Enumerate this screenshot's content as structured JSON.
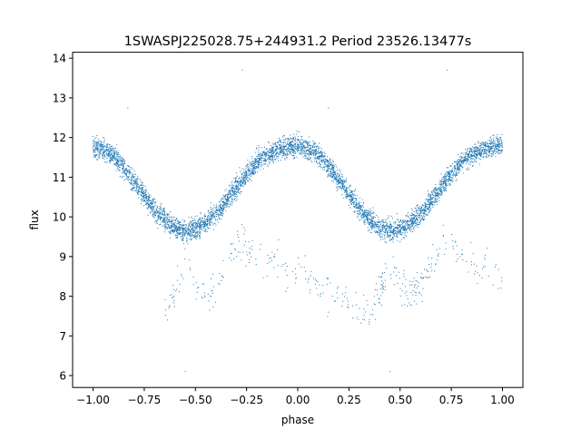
{
  "chart_data": {
    "type": "scatter",
    "title": "1SWASPJ225028.75+244931.2 Period 23526.13477s",
    "xlabel": "phase",
    "ylabel": "flux",
    "xlim": [
      -1.1,
      1.1
    ],
    "ylim": [
      5.7,
      14.15
    ],
    "xticks": [
      -1.0,
      -0.75,
      -0.5,
      -0.25,
      0.0,
      0.25,
      0.5,
      0.75,
      1.0
    ],
    "xtick_labels": [
      "−1.00",
      "−0.75",
      "−0.50",
      "−0.25",
      "0.00",
      "0.25",
      "0.50",
      "0.75",
      "1.00"
    ],
    "yticks": [
      6,
      7,
      8,
      9,
      10,
      11,
      12,
      13,
      14
    ],
    "ytick_labels": [
      "6",
      "7",
      "8",
      "9",
      "10",
      "11",
      "12",
      "13",
      "14"
    ],
    "grid": false,
    "legend": "none",
    "marker_color": "#1f77b4",
    "series": [
      {
        "curve": {
          "phase": [
            -1.0,
            -0.9,
            -0.8,
            -0.7,
            -0.6,
            -0.55,
            -0.5,
            -0.4,
            -0.3,
            -0.2,
            -0.1,
            0.0,
            0.1,
            0.2,
            0.3,
            0.4,
            0.45,
            0.5,
            0.6,
            0.7,
            0.8,
            0.9,
            1.0
          ],
          "flux": [
            11.8,
            11.55,
            10.9,
            10.15,
            9.7,
            9.65,
            9.7,
            10.05,
            10.75,
            11.4,
            11.7,
            11.8,
            11.6,
            10.95,
            10.2,
            9.7,
            9.65,
            9.7,
            10.05,
            10.75,
            11.4,
            11.7,
            11.8
          ]
        },
        "dip_branch": {
          "phase": [
            -0.65,
            -0.6,
            -0.55,
            -0.5,
            -0.45,
            -0.4,
            -0.35,
            -0.3,
            0.35,
            0.4,
            0.45,
            0.5,
            0.55,
            0.6,
            0.65,
            0.7
          ],
          "flux": [
            7.5,
            8.1,
            8.8,
            8.2,
            8.1,
            8.2,
            8.8,
            9.4,
            7.5,
            8.1,
            8.8,
            8.2,
            8.1,
            8.2,
            8.8,
            9.4
          ]
        },
        "outliers": {
          "phase": [
            -0.55,
            -0.83,
            0.35,
            0.45,
            -0.27,
            0.73,
            0.15
          ],
          "flux": [
            6.1,
            12.75,
            7.3,
            6.1,
            13.7,
            13.7,
            12.75
          ]
        }
      }
    ]
  }
}
